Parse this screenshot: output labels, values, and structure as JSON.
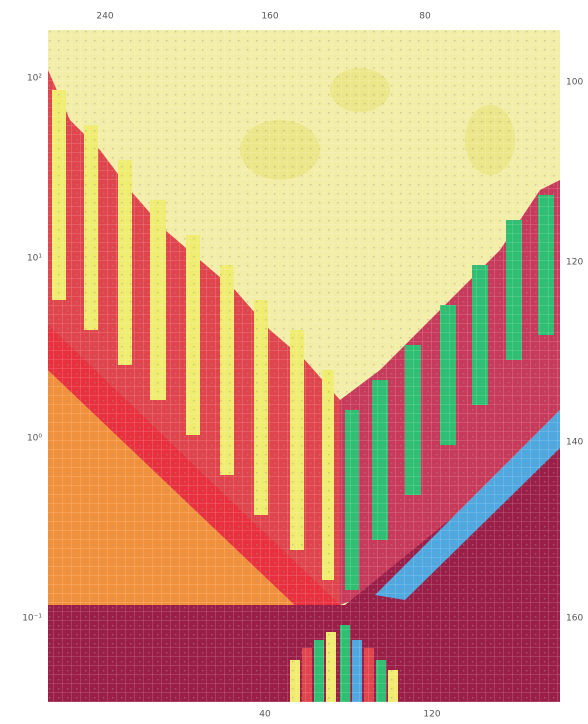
{
  "axes": {
    "top": [
      "240",
      "160",
      "80"
    ],
    "bottom": [
      "40",
      "120"
    ],
    "left": [
      "10²",
      "10¹",
      "10⁰",
      "10⁻¹"
    ],
    "right": [
      "100",
      "120",
      "140",
      "160"
    ]
  }
}
